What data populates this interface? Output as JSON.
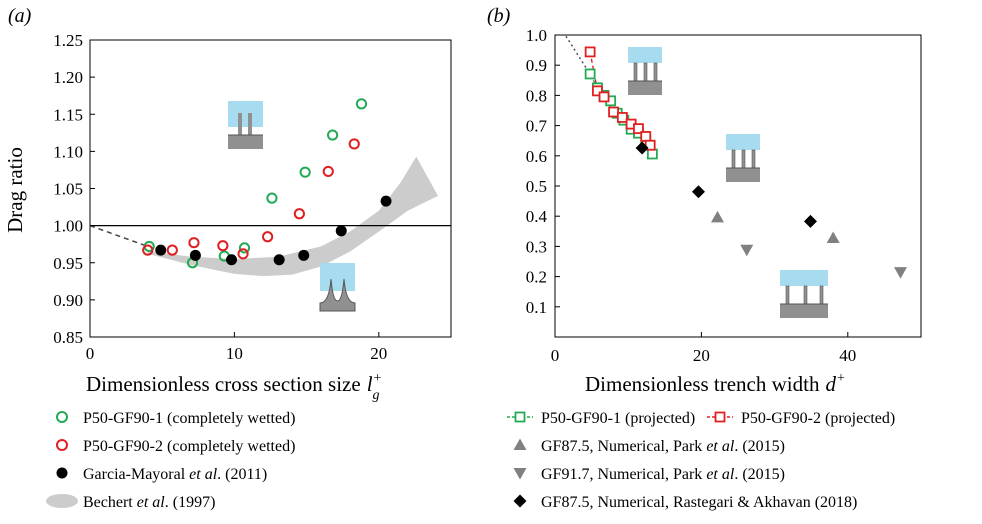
{
  "chart_data": [
    {
      "panel": "(a)",
      "type": "scatter",
      "xlabel": "Dimensionless cross section size",
      "xlabel_symbol": "l",
      "xlabel_sub": "g",
      "xlabel_sup": "+",
      "ylabel": "Drag ratio",
      "xlim": [
        0,
        25
      ],
      "ylim": [
        0.85,
        1.25
      ],
      "xticks": [
        "0",
        "10",
        "20"
      ],
      "yticks": [
        "0.85",
        "0.90",
        "0.95",
        "1.00",
        "1.05",
        "1.10",
        "1.15",
        "1.20",
        "1.25"
      ],
      "reference_line_y": 1.0,
      "series": [
        {
          "name": "P50-GF90-1 (completely wetted)",
          "marker": "open-circle",
          "color": "#22aa55",
          "points": [
            [
              4.1,
              0.972
            ],
            [
              7.1,
              0.95
            ],
            [
              9.3,
              0.959
            ],
            [
              10.7,
              0.97
            ],
            [
              12.6,
              1.037
            ],
            [
              14.9,
              1.072
            ],
            [
              16.8,
              1.122
            ],
            [
              18.8,
              1.164
            ]
          ]
        },
        {
          "name": "P50-GF90-2 (completely wetted)",
          "marker": "open-circle",
          "color": "#e02020",
          "points": [
            [
              4.0,
              0.967
            ],
            [
              5.7,
              0.967
            ],
            [
              7.2,
              0.977
            ],
            [
              9.2,
              0.973
            ],
            [
              10.6,
              0.962
            ],
            [
              12.3,
              0.985
            ],
            [
              14.5,
              1.016
            ],
            [
              16.5,
              1.073
            ],
            [
              18.3,
              1.11
            ]
          ]
        },
        {
          "name": "Garcia-Mayoral et al. (2011)",
          "marker": "filled-circle",
          "color": "#000000",
          "points": [
            [
              4.9,
              0.967
            ],
            [
              7.3,
              0.96
            ],
            [
              9.8,
              0.954
            ],
            [
              13.1,
              0.954
            ],
            [
              14.8,
              0.96
            ],
            [
              17.4,
              0.993
            ],
            [
              20.5,
              1.033
            ]
          ]
        },
        {
          "name": "Bechert et al. (1997)",
          "marker": "shaded-band",
          "color": "#cccccc",
          "upper": [
            [
              4.0,
              0.966
            ],
            [
              7,
              0.958
            ],
            [
              10,
              0.955
            ],
            [
              13,
              0.958
            ],
            [
              16,
              0.972
            ],
            [
              18,
              0.992
            ],
            [
              20,
              1.02
            ],
            [
              21.5,
              1.058
            ],
            [
              22.6,
              1.093
            ]
          ],
          "lower": [
            [
              4.0,
              0.962
            ],
            [
              7,
              0.947
            ],
            [
              10,
              0.935
            ],
            [
              12,
              0.932
            ],
            [
              14,
              0.934
            ],
            [
              16,
              0.945
            ],
            [
              18,
              0.965
            ],
            [
              20,
              0.992
            ],
            [
              22,
              1.02
            ],
            [
              24.1,
              1.04
            ]
          ]
        },
        {
          "name": "trend",
          "marker": "dashed-line",
          "color": "#444444",
          "points": [
            [
              0,
              1.0
            ],
            [
              2,
              0.986
            ],
            [
              4,
              0.972
            ]
          ]
        }
      ]
    },
    {
      "panel": "(b)",
      "type": "scatter",
      "xlabel": "Dimensionless trench width",
      "xlabel_symbol": "d",
      "xlabel_sup": "+",
      "ylabel": "",
      "xlim": [
        0,
        50
      ],
      "ylim": [
        0,
        1.0
      ],
      "xticks": [
        "0",
        "20",
        "40"
      ],
      "yticks": [
        "0.1",
        "0.2",
        "0.3",
        "0.4",
        "0.5",
        "0.6",
        "0.7",
        "0.8",
        "0.9",
        "1.0"
      ],
      "series": [
        {
          "name": "P50-GF90-1 (projected)",
          "marker": "open-square",
          "color": "#22aa55",
          "line": "dashed",
          "points": [
            [
              4.8,
              0.871
            ],
            [
              5.8,
              0.825
            ],
            [
              6.7,
              0.8
            ],
            [
              7.6,
              0.782
            ],
            [
              8.5,
              0.741
            ],
            [
              9.4,
              0.718
            ],
            [
              10.4,
              0.688
            ],
            [
              11.4,
              0.675
            ],
            [
              12.4,
              0.651
            ],
            [
              13.3,
              0.606
            ]
          ]
        },
        {
          "name": "P50-GF90-2 (projected)",
          "marker": "open-square",
          "color": "#e02020",
          "line": "dashed",
          "points": [
            [
              4.8,
              0.944
            ],
            [
              5.8,
              0.815
            ],
            [
              6.7,
              0.795
            ],
            [
              8.0,
              0.745
            ],
            [
              9.2,
              0.727
            ],
            [
              10.4,
              0.705
            ],
            [
              11.4,
              0.69
            ],
            [
              12.4,
              0.664
            ],
            [
              13.0,
              0.635
            ]
          ]
        },
        {
          "name": "GF87.5, Numerical, Park et al. (2015)",
          "marker": "triangle-up",
          "color": "#808080",
          "points": [
            [
              22.2,
              0.396
            ],
            [
              38.0,
              0.328
            ]
          ]
        },
        {
          "name": "GF91.7, Numerical, Park et al. (2015)",
          "marker": "triangle-down",
          "color": "#808080",
          "points": [
            [
              26.2,
              0.289
            ],
            [
              47.2,
              0.215
            ]
          ]
        },
        {
          "name": "GF87.5, Numerical, Rastegari & Akhavan (2018)",
          "marker": "diamond",
          "color": "#000000",
          "points": [
            [
              11.9,
              0.626
            ],
            [
              19.6,
              0.481
            ],
            [
              34.9,
              0.383
            ]
          ]
        },
        {
          "name": "trend",
          "marker": "dotted-line",
          "color": "#444444",
          "points": [
            [
              1.5,
              0.996
            ],
            [
              4.8,
              0.87
            ]
          ]
        }
      ]
    }
  ],
  "legend": [
    {
      "label": "P50-GF90-1 (completely wetted)",
      "marker": "open-circle",
      "color": "#22aa55",
      "italic_part": ""
    },
    {
      "label": "P50-GF90-2 (completely wetted)",
      "marker": "open-circle",
      "color": "#e02020",
      "italic_part": ""
    },
    {
      "label_pre": "Garcia-Mayoral ",
      "label_italic": "et al",
      "label_post": ". (2011)",
      "marker": "filled-circle",
      "color": "#000000"
    },
    {
      "label_pre": "Bechert ",
      "label_italic": "et al",
      "label_post": ". (1997)",
      "marker": "shaded-band",
      "color": "#cccccc"
    },
    {
      "label": "P50-GF90-1 (projected)",
      "marker": "open-square",
      "color": "#22aa55"
    },
    {
      "label": "P50-GF90-2 (projected)",
      "marker": "open-square",
      "color": "#e02020"
    },
    {
      "label_pre": "GF87.5, Numerical, Park ",
      "label_italic": "et al",
      "label_post": ". (2015)",
      "marker": "triangle-up",
      "color": "#808080"
    },
    {
      "label_pre": "GF91.7, Numerical, Park ",
      "label_italic": "et al",
      "label_post": ". (2015)",
      "marker": "triangle-down",
      "color": "#808080"
    },
    {
      "label_pre": "GF87.5, Numerical, Rastegari & Akhavan (2018)",
      "label_italic": "",
      "label_post": "",
      "marker": "diamond",
      "color": "#000000"
    }
  ],
  "colors": {
    "green": "#22aa55",
    "red": "#e02020",
    "grey": "#808080",
    "band": "#cccccc",
    "fluid": "#a7dcf0",
    "solid": "#909090"
  }
}
